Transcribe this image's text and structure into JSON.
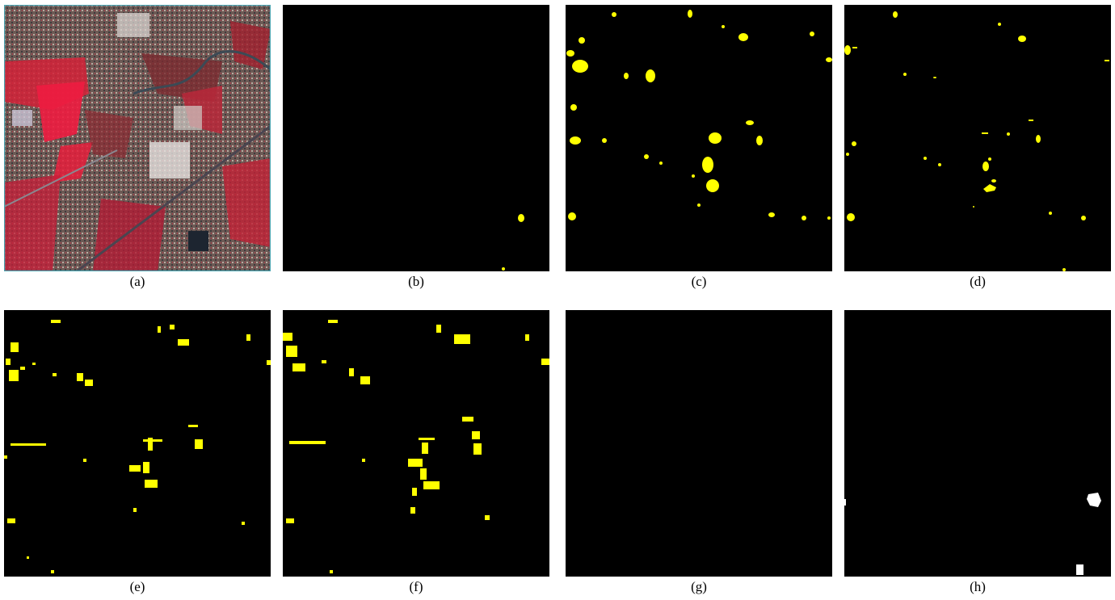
{
  "figure": {
    "panels": [
      {
        "id": "a",
        "caption": "(a)",
        "kind": "satellite-image"
      },
      {
        "id": "b",
        "caption": "(b)",
        "kind": "change-map",
        "blob_color": "#ffff00"
      },
      {
        "id": "c",
        "caption": "(c)",
        "kind": "change-map",
        "blob_color": "#ffff00"
      },
      {
        "id": "d",
        "caption": "(d)",
        "kind": "change-map",
        "blob_color": "#ffff00"
      },
      {
        "id": "e",
        "caption": "(e)",
        "kind": "change-map",
        "blob_color": "#ffff00"
      },
      {
        "id": "f",
        "caption": "(f)",
        "kind": "change-map",
        "blob_color": "#ffff00"
      },
      {
        "id": "g",
        "caption": "(g)",
        "kind": "change-map",
        "blob_color": "#ffff00"
      },
      {
        "id": "h",
        "caption": "(h)",
        "kind": "ground-truth",
        "blob_color": "#ffffff"
      }
    ]
  }
}
